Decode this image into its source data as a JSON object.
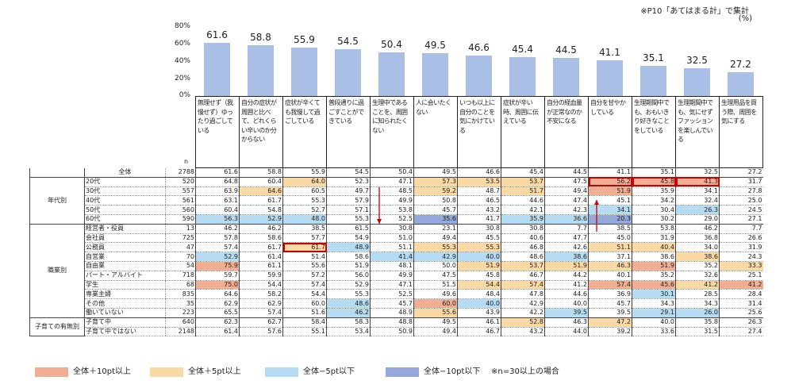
{
  "note": "※P10「あてはまる計」で集計",
  "unit": "(%)",
  "n_label": "n",
  "chart_data": {
    "type": "bar",
    "y_ticks": [
      "80%",
      "60%",
      "40%",
      "20%",
      "0%"
    ],
    "ylim": [
      0,
      80
    ],
    "categories": [
      "無理せず（我慢せず）ゆったり過ごしている",
      "自分の症状が周囲と比べて、どれくらい辛いのか分からない",
      "症状が辛くても我慢して過ごしている",
      "普段通りに過ごすことができている",
      "生理中であることを、周囲に知られたくない",
      "人に会いたくない",
      "いつも以上に自分のことを気にかけている",
      "症状が辛い時、周囲に伝えている",
      "自分の経血量が正常なのか不安になる",
      "自分を甘やかしている",
      "生理期間中でも、おもいきり好きなことをしている",
      "生理期間中でも、気にせずファッションを楽しんでいる",
      "生理用品を買う際、周囲を気にする"
    ],
    "values": [
      61.6,
      58.8,
      55.9,
      54.5,
      50.4,
      49.5,
      46.6,
      45.4,
      44.5,
      41.1,
      35.1,
      32.5,
      27.2
    ],
    "value_labels": [
      "61.6",
      "58.8",
      "55.9",
      "54.5",
      "50.4",
      "49.5",
      "46.6",
      "45.4",
      "44.5",
      "41.1",
      "35.1",
      "32.5",
      "27.2"
    ],
    "bar_color": "#a9bfe6"
  },
  "table": {
    "rows": [
      {
        "group": "",
        "label": "全体",
        "n": "2788",
        "v": [
          "61.6",
          "58.8",
          "55.9",
          "54.5",
          "50.4",
          "49.5",
          "46.6",
          "45.4",
          "44.5",
          "41.1",
          "35.1",
          "32.5",
          "27.2"
        ],
        "c": [
          0,
          0,
          0,
          0,
          0,
          0,
          0,
          0,
          0,
          0,
          0,
          0,
          0
        ]
      },
      {
        "group": "年代別",
        "label": "20代",
        "n": "520",
        "v": [
          "64.8",
          "60.4",
          "64.0",
          "52.3",
          "47.1",
          "57.3",
          "53.5",
          "53.7",
          "47.5",
          "56.2",
          "45.8",
          "41.3",
          "31.7"
        ],
        "c": [
          0,
          0,
          2,
          0,
          0,
          2,
          2,
          2,
          0,
          1,
          1,
          1,
          0
        ]
      },
      {
        "group": "",
        "label": "30代",
        "n": "557",
        "v": [
          "63.9",
          "64.6",
          "60.5",
          "49.7",
          "48.5",
          "59.2",
          "48.7",
          "51.7",
          "49.4",
          "51.9",
          "35.9",
          "34.1",
          "27.8"
        ],
        "c": [
          0,
          2,
          0,
          0,
          0,
          2,
          0,
          2,
          0,
          1,
          0,
          0,
          0
        ]
      },
      {
        "group": "",
        "label": "40代",
        "n": "561",
        "v": [
          "63.1",
          "61.7",
          "55.3",
          "57.9",
          "49.9",
          "50.8",
          "46.5",
          "44.6",
          "47.4",
          "45.1",
          "34.2",
          "32.4",
          "25.0"
        ],
        "c": [
          0,
          0,
          0,
          0,
          0,
          0,
          0,
          0,
          0,
          0,
          0,
          0,
          0
        ]
      },
      {
        "group": "",
        "label": "50代",
        "n": "560",
        "v": [
          "60.4",
          "54.8",
          "52.7",
          "57.1",
          "53.8",
          "45.7",
          "43.2",
          "42.1",
          "42.3",
          "34.1",
          "30.4",
          "26.3",
          "24.5"
        ],
        "c": [
          0,
          0,
          0,
          0,
          0,
          0,
          0,
          0,
          0,
          3,
          0,
          3,
          0
        ]
      },
      {
        "group": "",
        "label": "60代",
        "n": "590",
        "v": [
          "56.3",
          "52.9",
          "48.0",
          "55.3",
          "52.5",
          "35.6",
          "41.7",
          "35.9",
          "36.6",
          "20.3",
          "30.2",
          "29.0",
          "27.1"
        ],
        "c": [
          3,
          3,
          3,
          0,
          0,
          4,
          0,
          3,
          3,
          4,
          0,
          0,
          0
        ]
      },
      {
        "group": "職業別",
        "label": "経営者・役員",
        "n": "13",
        "v": [
          "46.2",
          "46.2",
          "38.5",
          "61.5",
          "30.8",
          "23.1",
          "30.8",
          "30.8",
          "7.7",
          "38.5",
          "53.8",
          "46.2",
          "7.7"
        ],
        "c": [
          0,
          0,
          0,
          0,
          0,
          0,
          0,
          0,
          0,
          0,
          0,
          0,
          0
        ]
      },
      {
        "group": "",
        "label": "会社員",
        "n": "725",
        "v": [
          "57.8",
          "58.6",
          "57.7",
          "54.9",
          "51.0",
          "49.4",
          "45.5",
          "40.6",
          "47.7",
          "45.0",
          "31.9",
          "36.8",
          "26.6"
        ],
        "c": [
          0,
          0,
          0,
          0,
          0,
          0,
          0,
          0,
          0,
          0,
          0,
          0,
          0
        ]
      },
      {
        "group": "",
        "label": "公務員",
        "n": "47",
        "v": [
          "57.4",
          "61.7",
          "61.7",
          "48.9",
          "51.1",
          "55.3",
          "55.3",
          "46.8",
          "42.6",
          "51.1",
          "40.4",
          "34.0",
          "31.9"
        ],
        "c": [
          0,
          0,
          2,
          3,
          0,
          2,
          2,
          0,
          0,
          2,
          2,
          0,
          0
        ]
      },
      {
        "group": "",
        "label": "自営業",
        "n": "70",
        "v": [
          "52.9",
          "61.4",
          "51.4",
          "58.6",
          "41.4",
          "42.9",
          "40.0",
          "48.6",
          "38.6",
          "37.1",
          "38.6",
          "38.6",
          "24.3"
        ],
        "c": [
          3,
          0,
          0,
          0,
          3,
          3,
          3,
          0,
          3,
          0,
          0,
          2,
          0
        ]
      },
      {
        "group": "",
        "label": "自由業",
        "n": "54",
        "v": [
          "75.9",
          "61.1",
          "55.6",
          "51.9",
          "48.1",
          "50.0",
          "51.9",
          "53.7",
          "51.9",
          "46.3",
          "51.9",
          "35.2",
          "33.3"
        ],
        "c": [
          1,
          0,
          0,
          0,
          0,
          0,
          2,
          2,
          2,
          2,
          1,
          0,
          2
        ]
      },
      {
        "group": "",
        "label": "パート・アルバイト",
        "n": "718",
        "v": [
          "59.7",
          "59.9",
          "57.2",
          "56.0",
          "49.9",
          "47.5",
          "45.8",
          "46.7",
          "44.2",
          "40.1",
          "35.2",
          "32.6",
          "25.1"
        ],
        "c": [
          0,
          0,
          0,
          0,
          0,
          0,
          0,
          0,
          0,
          0,
          0,
          0,
          0
        ]
      },
      {
        "group": "",
        "label": "学生",
        "n": "68",
        "v": [
          "75.0",
          "54.4",
          "57.4",
          "52.9",
          "47.1",
          "51.5",
          "54.4",
          "57.4",
          "41.2",
          "57.4",
          "45.6",
          "41.2",
          "41.2"
        ],
        "c": [
          1,
          0,
          0,
          0,
          0,
          0,
          2,
          2,
          0,
          1,
          1,
          2,
          1
        ]
      },
      {
        "group": "",
        "label": "専業主婦",
        "n": "835",
        "v": [
          "64.6",
          "58.2",
          "54.4",
          "55.3",
          "52.5",
          "49.6",
          "48.4",
          "47.8",
          "44.6",
          "36.9",
          "30.1",
          "28.5",
          "28.4"
        ],
        "c": [
          0,
          0,
          0,
          0,
          0,
          0,
          0,
          0,
          0,
          0,
          3,
          0,
          0
        ]
      },
      {
        "group": "",
        "label": "その他",
        "n": "35",
        "v": [
          "62.9",
          "62.9",
          "60.0",
          "48.6",
          "45.7",
          "60.0",
          "40.0",
          "42.9",
          "40.0",
          "45.7",
          "34.3",
          "34.3",
          "31.4"
        ],
        "c": [
          0,
          0,
          0,
          3,
          0,
          1,
          3,
          0,
          0,
          0,
          0,
          0,
          0
        ]
      },
      {
        "group": "",
        "label": "働いていない",
        "n": "223",
        "v": [
          "65.5",
          "57.4",
          "51.6",
          "46.2",
          "48.9",
          "55.6",
          "43.9",
          "42.2",
          "39.5",
          "39.5",
          "29.1",
          "26.0",
          "25.6"
        ],
        "c": [
          0,
          0,
          0,
          3,
          0,
          2,
          0,
          0,
          3,
          0,
          3,
          3,
          0
        ]
      },
      {
        "group": "子育ての有無別",
        "label": "子育て中",
        "n": "640",
        "v": [
          "62.3",
          "62.7",
          "58.4",
          "58.3",
          "48.8",
          "49.5",
          "46.1",
          "52.8",
          "46.3",
          "47.2",
          "40.0",
          "35.8",
          "26.3"
        ],
        "c": [
          0,
          0,
          0,
          0,
          0,
          0,
          0,
          2,
          0,
          2,
          0,
          0,
          0
        ]
      },
      {
        "group": "",
        "label": "子育て中ではない",
        "n": "2148",
        "v": [
          "61.4",
          "57.6",
          "55.1",
          "53.4",
          "50.9",
          "49.4",
          "46.7",
          "43.2",
          "44.0",
          "39.2",
          "33.6",
          "31.5",
          "27.4"
        ],
        "c": [
          0,
          0,
          0,
          0,
          0,
          0,
          0,
          0,
          0,
          0,
          0,
          0,
          0
        ]
      }
    ],
    "colors": [
      "#ffffff",
      "#f2ae93",
      "#fbd9a4",
      "#b5dcf2",
      "#94a8db"
    ],
    "highlight_color": "#cc0000"
  },
  "legend": [
    {
      "label": "全体＋10pt以上",
      "color": "#f2ae93"
    },
    {
      "label": "全体＋5pt以上",
      "color": "#fbd9a4"
    },
    {
      "label": "全体−5pt以下",
      "color": "#b5dcf2"
    },
    {
      "label": "全体−10pt以下",
      "color": "#94a8db"
    }
  ],
  "legend_note": "※n=30以上の場合"
}
